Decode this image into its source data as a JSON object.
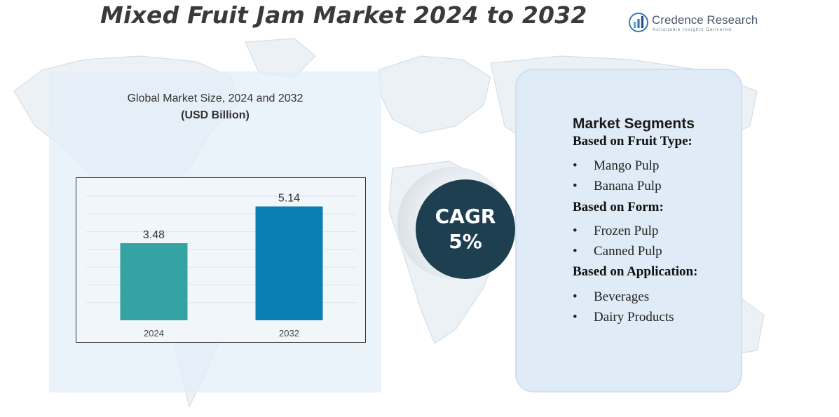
{
  "title": "Mixed Fruit Jam Market 2024 to 2032",
  "logo": {
    "name": "Credence Research",
    "tagline": "Actionable Insights Delivered",
    "colors": [
      "#3b78b5",
      "#5aa7d6",
      "#1d4f86"
    ]
  },
  "chart_panel": {
    "subtitle": "Global Market Size,  2024 and 2032",
    "unit": "(USD Billion)"
  },
  "chart_data": {
    "type": "bar",
    "categories": [
      "2024",
      "2032"
    ],
    "values": [
      3.48,
      5.14
    ],
    "value_labels": [
      "3.48",
      "5.14"
    ],
    "colors": [
      "#35a3a3",
      "#0a80b2"
    ],
    "title": "Global Market Size,  2024 and 2032",
    "ylabel": "(USD Billion)",
    "xlabel": "",
    "ylim": [
      0,
      5.6
    ],
    "grid": true,
    "legend": "none"
  },
  "cagr": {
    "label": "CAGR",
    "value": "5%"
  },
  "segments": {
    "title": "Market Segments",
    "groups": [
      {
        "title": "Based on Fruit Type:",
        "items": [
          "Mango Pulp",
          "Banana Pulp"
        ]
      },
      {
        "title": "Based on Form:",
        "items": [
          "Frozen Pulp",
          "Canned Pulp"
        ]
      },
      {
        "title": "Based on Application:",
        "items": [
          "Beverages",
          "Dairy Products"
        ]
      }
    ],
    "bullet": "•"
  }
}
